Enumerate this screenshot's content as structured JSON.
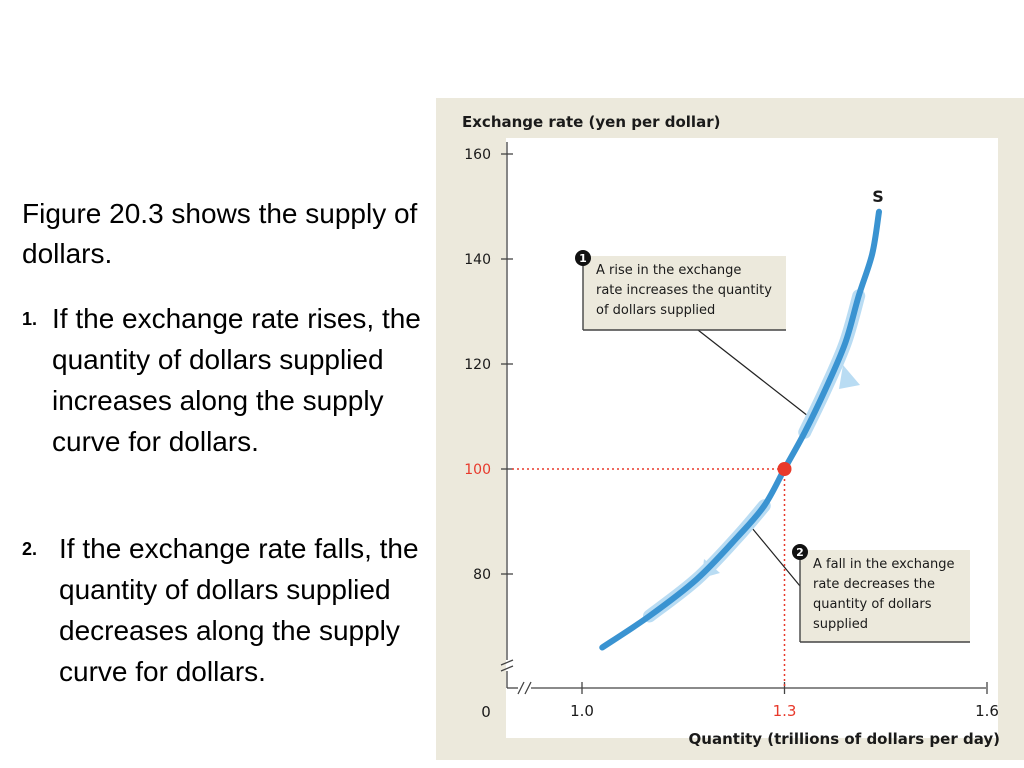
{
  "slide": {
    "intro": "Figure 20.3 shows the supply of dollars.",
    "points": [
      {
        "number": "1.",
        "text": "If the exchange rate rises, the quantity of dollars supplied increases along the supply curve for dollars."
      },
      {
        "number": "2.",
        "text": "If the exchange rate falls, the quantity of dollars supplied decreases along the supply curve for dollars."
      }
    ]
  },
  "chart_data": {
    "type": "line",
    "ylabel": "Exchange rate (yen per dollar)",
    "xlabel": "Quantity (trillions of dollars per day)",
    "x_origin_label": "0",
    "xlim": [
      1.0,
      1.6
    ],
    "ylim": [
      60,
      160
    ],
    "x_ticks": [
      1.0,
      1.3,
      1.6
    ],
    "x_tick_labels": [
      "1.0",
      "1.3",
      "1.6"
    ],
    "y_ticks": [
      80,
      100,
      120,
      140,
      160
    ],
    "y_tick_labels": [
      "80",
      "100",
      "120",
      "140",
      "160"
    ],
    "axis_breaks": true,
    "grid": false,
    "series": [
      {
        "name": "S",
        "color": "#3a93d1",
        "points": [
          [
            1.03,
            66
          ],
          [
            1.1,
            72
          ],
          [
            1.17,
            79
          ],
          [
            1.23,
            87
          ],
          [
            1.27,
            93
          ],
          [
            1.3,
            100
          ],
          [
            1.33,
            107
          ],
          [
            1.36,
            115
          ],
          [
            1.39,
            124
          ],
          [
            1.41,
            133
          ],
          [
            1.43,
            141
          ],
          [
            1.44,
            149
          ]
        ]
      }
    ],
    "highlight_point": {
      "x": 1.3,
      "y": 100,
      "color": "#e8392b",
      "x_label": "1.3",
      "y_label": "100"
    },
    "annotations": [
      {
        "number": "1",
        "text_lines": [
          "A rise in the exchange",
          "rate increases the quantity",
          "of dollars supplied"
        ]
      },
      {
        "number": "2",
        "text_lines": [
          "A fall in the exchange",
          "rate decreases the",
          "quantity of dollars",
          "supplied"
        ]
      }
    ],
    "colors": {
      "panel": "#ece9dc",
      "plot_area": "#ffffff",
      "curve": "#3a93d1",
      "arrows": "#b9dcf3",
      "highlight": "#e8392b",
      "callout": "#ece9dc"
    }
  }
}
